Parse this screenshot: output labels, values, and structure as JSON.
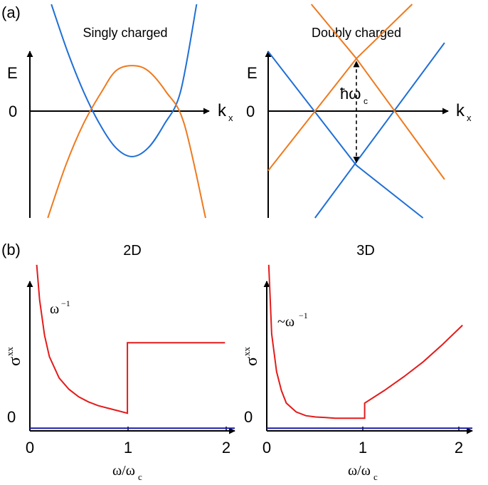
{
  "colors": {
    "blue": "#1f6fd6",
    "orange": "#ee7a1e",
    "red": "#e41b1b",
    "navy": "#1a1aa8",
    "axis": "#000000"
  },
  "chart_data": [
    {
      "type": "line",
      "panel_label": "(a)",
      "title": "Singly charged",
      "ylabel": "E",
      "xlabel_main": "k",
      "xlabel_sub": "x",
      "zero_label": "0",
      "xlim": [
        0,
        1
      ],
      "ylim": [
        -1.22,
        1.22
      ],
      "series": [
        {
          "color": "blue",
          "x": [
            0.12,
            0.21,
            0.3,
            0.39,
            0.48,
            0.57,
            0.66,
            0.75,
            0.84,
            0.93
          ],
          "y": [
            1.22,
            0.68,
            0.22,
            -0.15,
            -0.42,
            -0.52,
            -0.42,
            -0.15,
            0.22,
            1.22
          ]
        },
        {
          "color": "orange",
          "x": [
            0.1,
            0.2,
            0.3,
            0.4,
            0.48,
            0.57,
            0.66,
            0.76,
            0.86,
            0.98
          ],
          "y": [
            -1.22,
            -0.62,
            -0.14,
            0.22,
            0.46,
            0.52,
            0.46,
            0.22,
            -0.14,
            -1.22
          ]
        }
      ]
    },
    {
      "type": "line",
      "title": "Doubly charged",
      "ylabel": "E",
      "xlabel_main": "k",
      "xlabel_sub": "x",
      "zero_label": "0",
      "annotation": "ħω",
      "annotation_sub": "c",
      "xlim": [
        0,
        1
      ],
      "ylim": [
        -1.22,
        1.22
      ],
      "series": [
        {
          "color": "blue",
          "x": [
            0.0,
            0.49
          ],
          "y": [
            0.68,
            -0.62
          ]
        },
        {
          "color": "blue",
          "x": [
            0.26,
            0.98
          ],
          "y": [
            -1.22,
            0.78
          ]
        },
        {
          "color": "blue",
          "x": [
            0.49,
            0.86
          ],
          "y": [
            -0.62,
            -1.22
          ]
        },
        {
          "color": "orange",
          "x": [
            0.0,
            0.49
          ],
          "y": [
            -0.68,
            0.6
          ]
        },
        {
          "color": "orange",
          "x": [
            0.24,
            0.49
          ],
          "y": [
            1.22,
            0.6
          ]
        },
        {
          "color": "orange",
          "x": [
            0.49,
            0.98
          ],
          "y": [
            0.6,
            -0.78
          ]
        },
        {
          "color": "orange",
          "x": [
            0.49,
            0.8
          ],
          "y": [
            0.6,
            1.22
          ]
        }
      ],
      "arrow": {
        "x": 0.49,
        "y_from": -0.62,
        "y_to": 0.6
      }
    },
    {
      "type": "line",
      "panel_label": "(b)",
      "title": "2D",
      "ylabel_main": "σ",
      "ylabel_sup": "xx",
      "xlabel": "ω/ω",
      "xlabel_sub": "c",
      "annotation_main": "ω",
      "annotation_sup": "−1",
      "zero_label": "0",
      "xticks": [
        "0",
        "1",
        "2"
      ],
      "xlim": [
        0,
        2.1
      ],
      "ylim": [
        -0.1,
        1.35
      ],
      "series": [
        {
          "color": "red",
          "x": [
            0.07,
            0.1,
            0.15,
            0.2,
            0.3,
            0.4,
            0.5,
            0.6,
            0.7,
            0.8,
            0.9,
            1.0,
            1.0,
            2.0
          ],
          "y": [
            1.3,
            1.02,
            0.74,
            0.57,
            0.4,
            0.31,
            0.25,
            0.21,
            0.18,
            0.16,
            0.14,
            0.12,
            0.68,
            0.68
          ]
        },
        {
          "color": "navy",
          "x": [
            0.0,
            2.1
          ],
          "y": [
            0.0,
            0.0
          ]
        }
      ]
    },
    {
      "type": "line",
      "title": "3D",
      "ylabel_main": "σ",
      "ylabel_sup": "xx",
      "xlabel": "ω/ω",
      "xlabel_sub": "c",
      "annotation_main": "~ω",
      "annotation_sup": "−1",
      "zero_label": "0",
      "xticks": [
        "0",
        "1",
        "2"
      ],
      "xlim": [
        0,
        2.1
      ],
      "ylim": [
        -0.1,
        1.35
      ],
      "series": [
        {
          "color": "red",
          "x": [
            0.02,
            0.05,
            0.1,
            0.15,
            0.2,
            0.3,
            0.4,
            0.5,
            0.6,
            0.7,
            0.8,
            0.9,
            1.0,
            1.0,
            1.2,
            1.4,
            1.6,
            1.8,
            2.0
          ],
          "y": [
            1.3,
            0.75,
            0.45,
            0.3,
            0.2,
            0.13,
            0.1,
            0.09,
            0.085,
            0.08,
            0.08,
            0.08,
            0.08,
            0.2,
            0.3,
            0.41,
            0.53,
            0.67,
            0.82
          ]
        },
        {
          "color": "navy",
          "x": [
            0.0,
            2.1
          ],
          "y": [
            0.0,
            0.0
          ]
        }
      ]
    }
  ]
}
